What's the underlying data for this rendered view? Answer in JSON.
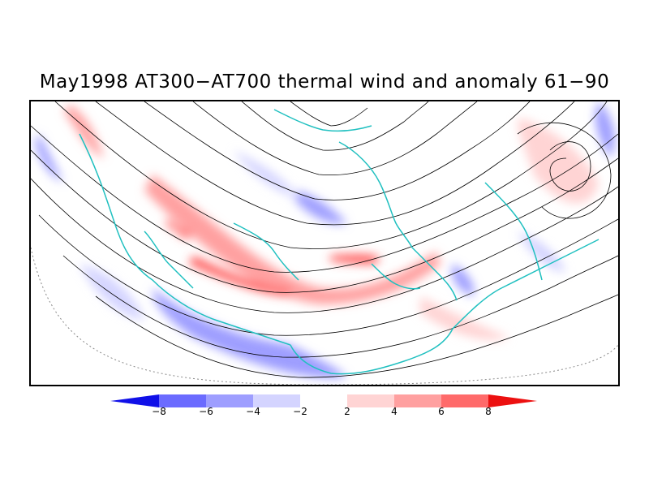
{
  "title": "May1998 AT300−AT700 thermal wind and anomaly 61−90",
  "colorbar": {
    "ticks": [
      "−8",
      "−6",
      "−4",
      "−2",
      "2",
      "4",
      "6",
      "8"
    ],
    "colors": [
      "#1010e8",
      "#6b6bff",
      "#9e9eff",
      "#d4d4ff",
      "#ffffff",
      "#ffd4d4",
      "#ffa0a0",
      "#ff6a6a",
      "#ec1010"
    ]
  },
  "map": {
    "coastline_color": "#20c0c0",
    "streamline_color": "#000000"
  }
}
